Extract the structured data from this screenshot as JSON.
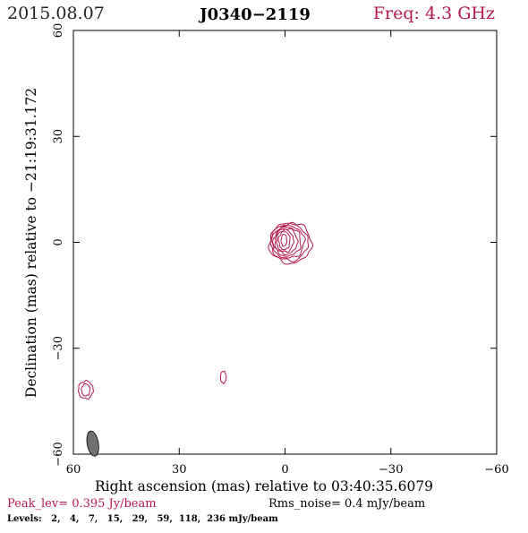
{
  "header": {
    "date": "2015.08.07",
    "source": "J0340−2119",
    "freq": "Freq: 4.3 GHz"
  },
  "axes": {
    "xlabel": "Right ascension (mas) relative to 03:40:35.6079",
    "ylabel": "Declination (mas) relative to −21:19:31.172"
  },
  "footer": {
    "peak": "Peak_lev=  0.395 Jy/beam",
    "rms": "Rms_noise=  0.4 mJy/beam",
    "levels": "Levels:   2,   4,   7,   15,   29,   59,  118,  236 mJy/beam"
  },
  "colors": {
    "contour": "#b5194a",
    "header_freq": "#b5194a",
    "peak_text": "#b5194a",
    "beam": "#707070",
    "frame": "#000000"
  },
  "chart_data": {
    "type": "contour",
    "xlim": [
      60,
      -60
    ],
    "ylim": [
      -60,
      60
    ],
    "x_ticks": [
      60,
      30,
      0,
      -30,
      -60
    ],
    "x_tick_labels": [
      "60",
      "30",
      "0",
      "−30",
      "−60"
    ],
    "y_ticks": [
      -60,
      -30,
      0,
      30,
      60
    ],
    "y_tick_labels": [
      "−60",
      "−30",
      "0",
      "30",
      "60"
    ],
    "levels_mJy_per_beam": [
      2,
      4,
      7,
      15,
      29,
      59,
      118,
      236
    ],
    "peak_Jy_per_beam": 0.395,
    "rms_noise_mJy_per_beam": 0.4,
    "components": [
      {
        "name": "core",
        "x": 0.3,
        "y": 0.6,
        "contours": [
          {
            "rx": 6.0,
            "ry": 5.7,
            "cx": -1.5,
            "cy": -0.2
          },
          {
            "rx": 5.3,
            "ry": 5.2,
            "cx": -1.2,
            "cy": 0.0
          },
          {
            "rx": 4.6,
            "ry": 4.6,
            "cx": -0.9,
            "cy": 0.1
          },
          {
            "rx": 3.9,
            "ry": 4.1,
            "cx": -0.6,
            "cy": 0.2
          },
          {
            "rx": 3.2,
            "ry": 3.6,
            "cx": -0.3,
            "cy": 0.3
          },
          {
            "rx": 2.4,
            "ry": 3.1,
            "cx": 0.0,
            "cy": 0.4
          },
          {
            "rx": 1.6,
            "ry": 2.6,
            "cx": 0.2,
            "cy": 0.5
          },
          {
            "rx": 0.8,
            "ry": 1.7,
            "cx": 0.3,
            "cy": 0.6
          }
        ]
      },
      {
        "name": "blob-a",
        "x": 17.5,
        "y": -38.2,
        "contours": [
          {
            "rx": 0.8,
            "ry": 1.7,
            "cx": 17.5,
            "cy": -38.2
          }
        ]
      },
      {
        "name": "blob-b",
        "x": 56.5,
        "y": -41.8,
        "contours": [
          {
            "rx": 2.1,
            "ry": 2.5,
            "cx": 56.5,
            "cy": -41.8
          },
          {
            "rx": 1.2,
            "ry": 1.7,
            "cx": 56.5,
            "cy": -41.8
          }
        ]
      }
    ],
    "beam": {
      "x": 54.5,
      "y": -57.0,
      "major": 3.6,
      "minor": 1.6,
      "pa_deg": -10
    }
  }
}
